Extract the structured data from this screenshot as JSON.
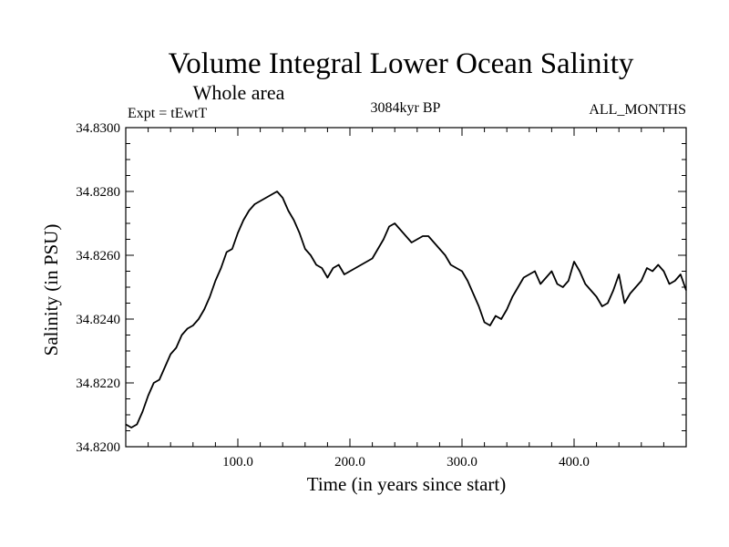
{
  "chart_data": {
    "type": "line",
    "title": "Volume Integral Lower Ocean Salinity",
    "subtitle": "Whole area",
    "experiment": "Expt = tEwtT",
    "period": "3084kyr BP",
    "months": "ALL_MONTHS",
    "xlabel": "Time (in years since start)",
    "ylabel": "Salinity (in PSU)",
    "xlim": [
      0,
      500
    ],
    "ylim": [
      34.82,
      34.83
    ],
    "x_ticks": [
      100,
      200,
      300,
      400
    ],
    "x_tick_labels": [
      "100.0",
      "200.0",
      "300.0",
      "400.0"
    ],
    "y_ticks": [
      34.82,
      34.822,
      34.824,
      34.826,
      34.828,
      34.83
    ],
    "y_tick_labels": [
      "34.8200",
      "34.8220",
      "34.8240",
      "34.8260",
      "34.8280",
      "34.8300"
    ],
    "series": [
      {
        "name": "Salinity",
        "x": [
          0,
          5,
          10,
          15,
          20,
          25,
          30,
          35,
          40,
          45,
          50,
          55,
          60,
          65,
          70,
          75,
          80,
          85,
          90,
          95,
          100,
          105,
          110,
          115,
          120,
          125,
          130,
          135,
          140,
          145,
          150,
          155,
          160,
          165,
          170,
          175,
          180,
          185,
          190,
          195,
          200,
          205,
          210,
          215,
          220,
          225,
          230,
          235,
          240,
          245,
          250,
          255,
          260,
          265,
          270,
          275,
          280,
          285,
          290,
          295,
          300,
          305,
          310,
          315,
          320,
          325,
          330,
          335,
          340,
          345,
          350,
          355,
          360,
          365,
          370,
          375,
          380,
          385,
          390,
          395,
          400,
          405,
          410,
          415,
          420,
          425,
          430,
          435,
          440,
          445,
          450,
          455,
          460,
          465,
          470,
          475,
          480,
          485,
          490,
          495,
          500
        ],
        "values": [
          34.8207,
          34.8206,
          34.8207,
          34.8211,
          34.8216,
          34.822,
          34.8221,
          34.8225,
          34.8229,
          34.8231,
          34.8235,
          34.8237,
          34.8238,
          34.824,
          34.8243,
          34.8247,
          34.8252,
          34.8256,
          34.8261,
          34.8262,
          34.8267,
          34.8271,
          34.8274,
          34.8276,
          34.8277,
          34.8278,
          34.8279,
          34.828,
          34.8278,
          34.8274,
          34.8271,
          34.8267,
          34.8262,
          34.826,
          34.8257,
          34.8256,
          34.8253,
          34.8256,
          34.8257,
          34.8254,
          34.8255,
          34.8256,
          34.8257,
          34.8258,
          34.8259,
          34.8262,
          34.8265,
          34.8269,
          34.827,
          34.8268,
          34.8266,
          34.8264,
          34.8265,
          34.8266,
          34.8266,
          34.8264,
          34.8262,
          34.826,
          34.8257,
          34.8256,
          34.8255,
          34.8252,
          34.8248,
          34.8244,
          34.8239,
          34.8238,
          34.8241,
          34.824,
          34.8243,
          34.8247,
          34.825,
          34.8253,
          34.8254,
          34.8255,
          34.8251,
          34.8253,
          34.8255,
          34.8251,
          34.825,
          34.8252,
          34.8258,
          34.8255,
          34.8251,
          34.8249,
          34.8247,
          34.8244,
          34.8245,
          34.8249,
          34.8254,
          34.8245,
          34.8248,
          34.825,
          34.8252,
          34.8256,
          34.8255,
          34.8257,
          34.8255,
          34.8251,
          34.8252,
          34.8254,
          34.8249
        ]
      }
    ]
  },
  "colors": {
    "line": "#000000",
    "frame": "#000000",
    "background": "#ffffff"
  }
}
